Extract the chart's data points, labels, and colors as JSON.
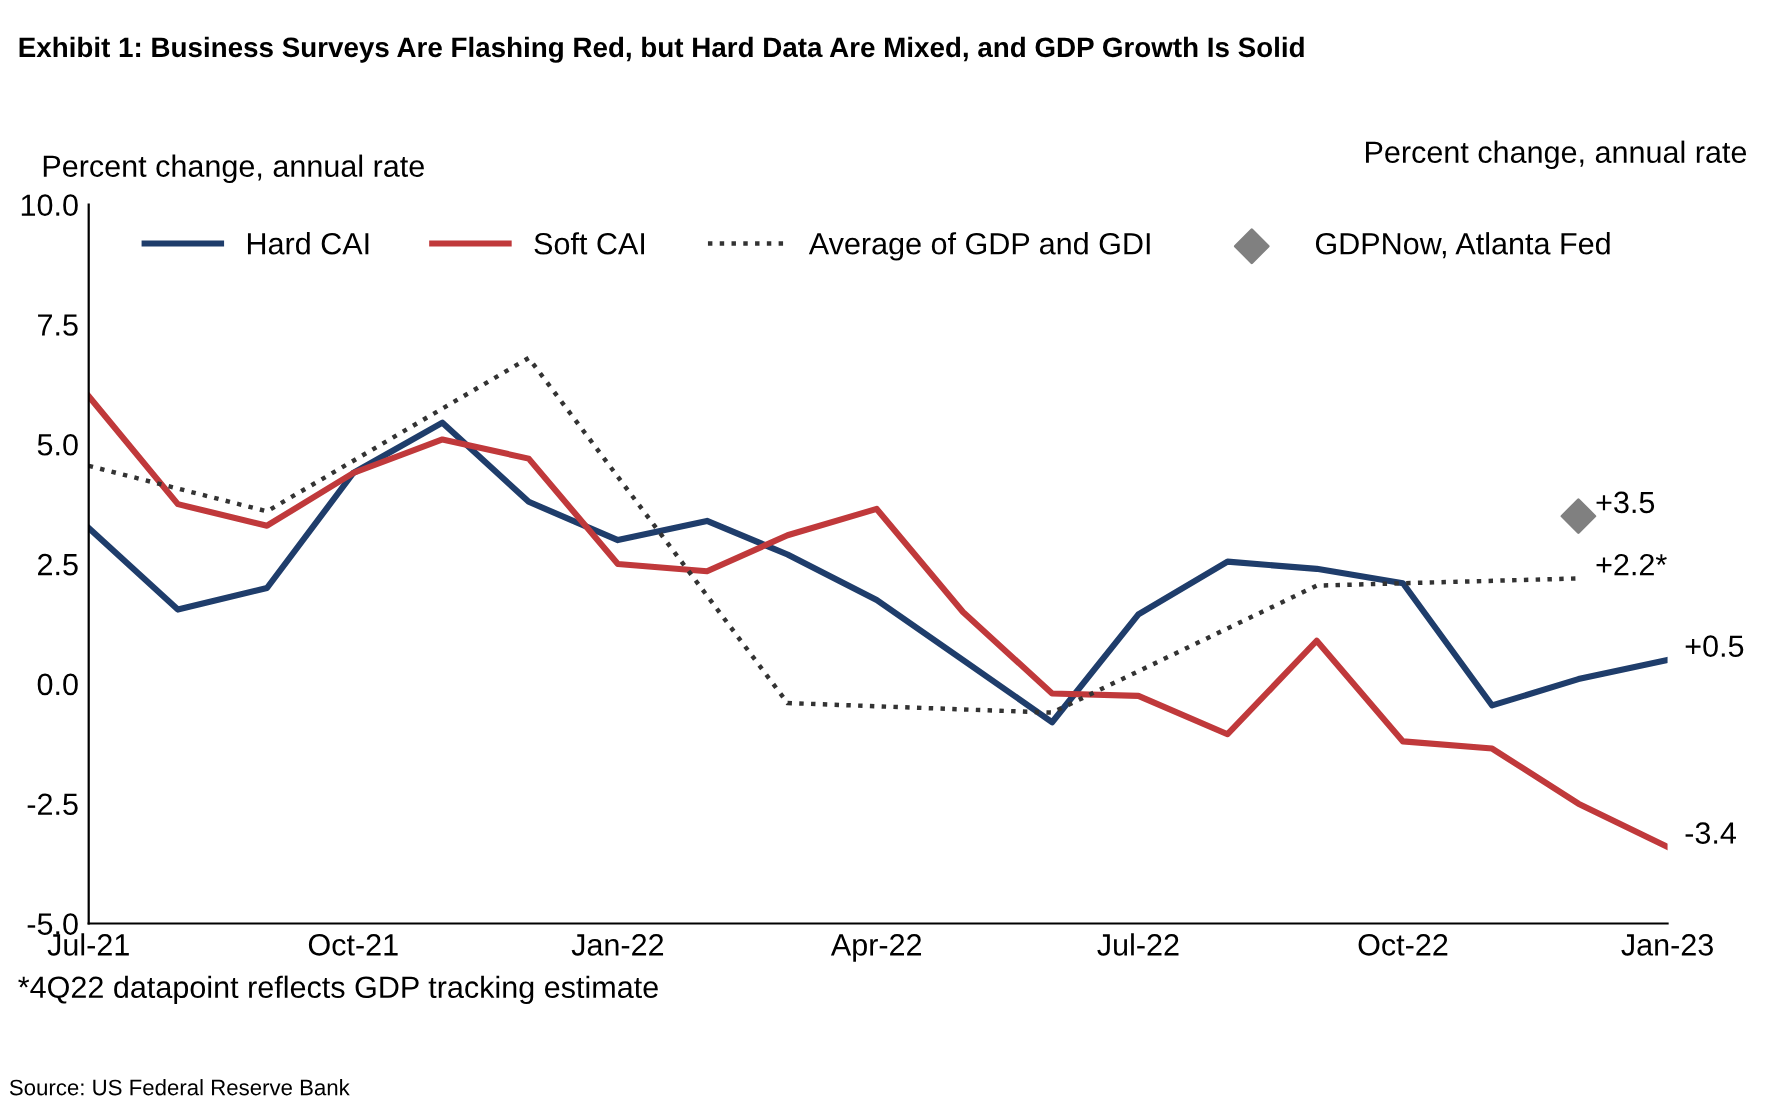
{
  "chart_data": {
    "type": "line",
    "title": "Exhibit 1: Business Surveys Are Flashing Red, but Hard Data Are Mixed, and GDP Growth Is Solid",
    "ylabel": "Percent change, annual rate",
    "series": [
      {
        "name": "Hard CAI",
        "color": "#1f3d6b",
        "line_style": "solid",
        "x": [
          "2021-07",
          "2021-08",
          "2021-09",
          "2021-10",
          "2021-11",
          "2021-12",
          "2022-01",
          "2022-02",
          "2022-03",
          "2022-04",
          "2022-05",
          "2022-06",
          "2022-07",
          "2022-08",
          "2022-09",
          "2022-10",
          "2022-11",
          "2022-12",
          "2023-01"
        ],
        "values": [
          3.25,
          1.55,
          2.0,
          4.4,
          5.45,
          3.8,
          3.0,
          3.4,
          2.7,
          1.75,
          0.5,
          -0.8,
          1.45,
          2.55,
          2.4,
          2.1,
          -0.45,
          0.1,
          0.5
        ]
      },
      {
        "name": "Soft CAI",
        "color": "#c0393b",
        "line_style": "solid",
        "x": [
          "2021-07",
          "2021-08",
          "2021-09",
          "2021-10",
          "2021-11",
          "2021-12",
          "2022-01",
          "2022-02",
          "2022-03",
          "2022-04",
          "2022-05",
          "2022-06",
          "2022-07",
          "2022-08",
          "2022-09",
          "2022-10",
          "2022-11",
          "2022-12",
          "2023-01"
        ],
        "values": [
          6.0,
          3.75,
          3.3,
          4.4,
          5.1,
          4.7,
          2.5,
          2.35,
          3.1,
          3.65,
          1.5,
          -0.2,
          -0.25,
          -1.05,
          0.9,
          -1.2,
          -1.35,
          -2.5,
          -3.4
        ]
      },
      {
        "name": "Average of GDP and GDI",
        "color": "#333333",
        "line_style": "dotted",
        "x": [
          "2021-07",
          "2021-09",
          "2021-12",
          "2022-03",
          "2022-06",
          "2022-09",
          "2022-12"
        ],
        "values": [
          4.55,
          3.6,
          6.8,
          -0.4,
          -0.6,
          2.05,
          2.2
        ]
      },
      {
        "name": "GDPNow, Atlanta Fed",
        "type": "scatter",
        "marker": "diamond",
        "color": "#808080",
        "x": [
          "2022-12"
        ],
        "values": [
          3.5
        ]
      }
    ],
    "xlim": [
      "2021-07",
      "2023-01"
    ],
    "xticks": [
      {
        "value": "2021-07",
        "label": "Jul-21"
      },
      {
        "value": "2021-10",
        "label": "Oct-21"
      },
      {
        "value": "2022-01",
        "label": "Jan-22"
      },
      {
        "value": "2022-04",
        "label": "Apr-22"
      },
      {
        "value": "2022-07",
        "label": "Jul-22"
      },
      {
        "value": "2022-10",
        "label": "Oct-22"
      },
      {
        "value": "2023-01",
        "label": "Jan-23"
      }
    ],
    "ylim": [
      -5,
      10
    ],
    "yticks": [
      {
        "value": -5,
        "label": "-5.0"
      },
      {
        "value": -2.5,
        "label": "-2.5"
      },
      {
        "value": 0,
        "label": "0.0"
      },
      {
        "value": 2.5,
        "label": "2.5"
      },
      {
        "value": 5,
        "label": "5.0"
      },
      {
        "value": 7.5,
        "label": "7.5"
      },
      {
        "value": 10,
        "label": "10.0"
      }
    ],
    "annotations": [
      {
        "text": "+3.5",
        "x": "2022-12",
        "y": 3.5
      },
      {
        "text": "+2.2*",
        "x": "2022-12",
        "y": 2.2
      },
      {
        "text": "+0.5",
        "x": "2023-01",
        "y": 0.5
      },
      {
        "text": "-3.4",
        "x": "2023-01",
        "y": -3.4
      },
      "Percent change, annual rate",
      "*4Q22 datapoint reflects GDP tracking estimate",
      "Source: US Federal Reserve Bank"
    ],
    "legend": "top",
    "grid": false,
    "marker": "none"
  }
}
